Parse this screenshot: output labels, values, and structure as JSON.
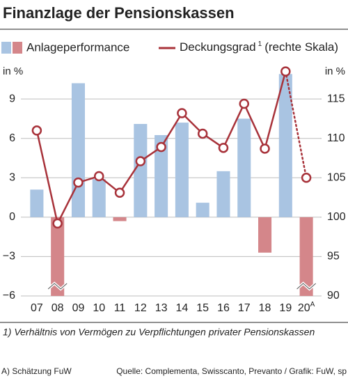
{
  "chart_data": {
    "type": "bar-line",
    "title": "Finanzlage der Pensionskassen",
    "left_axis_label": "in %",
    "right_axis_label": "in %",
    "categories": [
      "07",
      "08",
      "09",
      "10",
      "11",
      "12",
      "13",
      "14",
      "15",
      "16",
      "17",
      "18",
      "19",
      "20"
    ],
    "estimate_marker": "A",
    "series": [
      {
        "name": "Anlageperformance",
        "type": "bar",
        "color": "#a9c4e2",
        "negative_color": "#d4868a",
        "values": [
          2.1,
          -6,
          10.2,
          2.9,
          -0.3,
          7.1,
          6.25,
          7.2,
          1.1,
          3.5,
          7.5,
          -2.7,
          10.9,
          -6
        ],
        "broken_bars": [
          1,
          13
        ]
      },
      {
        "name": "Deckungsgrad",
        "name_superscript": "1",
        "name_suffix": "(rechte Skala)",
        "type": "line",
        "axis": "y2",
        "color": "#a8323a",
        "values": [
          111.0,
          99.2,
          104.4,
          105.2,
          103.1,
          107.1,
          108.9,
          113.2,
          110.6,
          108.8,
          114.4,
          108.7,
          118.5,
          105.0
        ],
        "dotted_segments": [
          12
        ]
      }
    ],
    "ylim": [
      -6,
      11.5
    ],
    "yticks": [
      {
        "value": -6,
        "label": "−6"
      },
      {
        "value": -3,
        "label": "−3"
      },
      0,
      3,
      6,
      9
    ],
    "y2lim": [
      90,
      119.17
    ],
    "y2ticks": [
      90,
      95,
      100,
      105,
      110,
      115
    ],
    "grid": true,
    "footnote": "1) Verhältnis von Vermögen zu Verpflichtungen privater Pensionskassen",
    "estimate_note": "A) Schätzung FuW",
    "source": "Quelle: Complementa, Swisscanto, Prevanto / Grafik: FuW, sp"
  }
}
